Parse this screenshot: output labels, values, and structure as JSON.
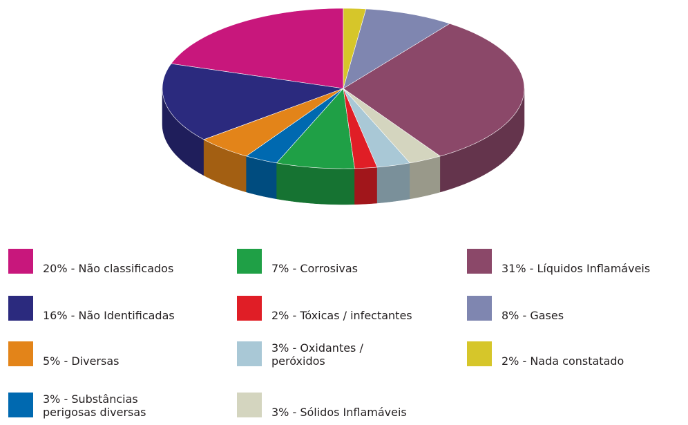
{
  "chart_data": {
    "type": "pie",
    "categories": [
      "20% - Não classificados",
      "16% - Não Identificadas",
      "5% - Diversas",
      "3% - Substâncias perigosas diversas",
      "7% - Corrosivas",
      "2% - Tóxicas / infectantes",
      "3% - Oxidantes / peróxidos",
      "3% - Sólidos Inflamáveis",
      "31% - Líquidos Inflamáveis",
      "8% - Gases",
      "2% - Nada constatado"
    ],
    "values": [
      20,
      16,
      5,
      3,
      7,
      2,
      3,
      3,
      31,
      8,
      2
    ],
    "colors": [
      "#c8177c",
      "#2b2a7e",
      "#e38419",
      "#0069b0",
      "#1fa046",
      "#e01e26",
      "#a9c8d6",
      "#d4d5bf",
      "#8b4869",
      "#7f86b0",
      "#d6c62a"
    ]
  }
}
